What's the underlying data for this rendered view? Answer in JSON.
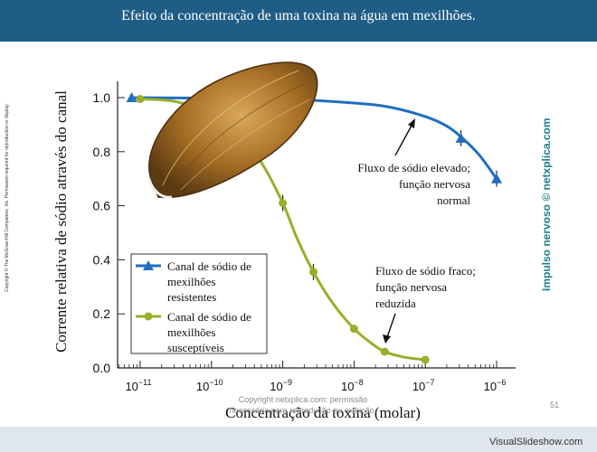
{
  "header": {
    "title": "Efeito da concentração de uma toxina na água em mexilhões."
  },
  "side": {
    "left_text": "Copyright © The McGraw-Hill Companies, Inc. Permission required for reproduction or display.",
    "right_text": "Impulso nervoso © netxplica.com"
  },
  "footer": {
    "copyright_line1": "Copyright netxplica.com: permissão",
    "copyright_line2": "necessária para reprodução ou exibição.",
    "page_number": "51",
    "watermark": "VisualSlideshow.com"
  },
  "colors": {
    "header_bg": "#1f5d86",
    "resistant": "#1f6fbf",
    "susceptible": "#9aae2a",
    "shell": "#b07a2a"
  },
  "chart_data": {
    "type": "line",
    "xlabel": "Concentração da toxina (molar)",
    "ylabel": "Corrente relativa de sódio através do canal",
    "x_scale": "log",
    "xlim_exp": [
      -11.3,
      -5.85
    ],
    "ylim": [
      0,
      1.05
    ],
    "x_ticks": [
      {
        "exp": -11,
        "label": "10",
        "sup": "−11"
      },
      {
        "exp": -10,
        "label": "10",
        "sup": "−10"
      },
      {
        "exp": -9,
        "label": "10",
        "sup": "−9"
      },
      {
        "exp": -8,
        "label": "10",
        "sup": "−8"
      },
      {
        "exp": -7,
        "label": "10",
        "sup": "−7"
      },
      {
        "exp": -6,
        "label": "10",
        "sup": "−6"
      }
    ],
    "y_ticks": [
      {
        "value": 0.0,
        "label": "0.0"
      },
      {
        "value": 0.2,
        "label": "0.2"
      },
      {
        "value": 0.4,
        "label": "0.4"
      },
      {
        "value": 0.6,
        "label": "0.6"
      },
      {
        "value": 0.8,
        "label": "0.8"
      },
      {
        "value": 1.0,
        "label": "1.0"
      }
    ],
    "series": [
      {
        "name": "Canal de sódio de mexilhões resistentes",
        "legend_lines": [
          "Canal de sódio de",
          "mexilhões",
          "resistentes"
        ],
        "marker": "triangle",
        "color": "#1f6fbf",
        "points": [
          {
            "x_exp": -11.12,
            "y": 1.0,
            "err": 0
          },
          {
            "x_exp": -6.5,
            "y": 0.85,
            "err": 0.03
          },
          {
            "x_exp": -6.0,
            "y": 0.7,
            "err": 0.03
          }
        ],
        "curve": [
          {
            "x_exp": -11.12,
            "y": 1.0
          },
          {
            "x_exp": -10.0,
            "y": 0.998
          },
          {
            "x_exp": -9.0,
            "y": 0.995
          },
          {
            "x_exp": -8.0,
            "y": 0.98
          },
          {
            "x_exp": -7.5,
            "y": 0.965
          },
          {
            "x_exp": -7.0,
            "y": 0.93
          },
          {
            "x_exp": -6.7,
            "y": 0.895
          },
          {
            "x_exp": -6.5,
            "y": 0.855
          },
          {
            "x_exp": -6.25,
            "y": 0.79
          },
          {
            "x_exp": -6.0,
            "y": 0.7
          }
        ]
      },
      {
        "name": "Canal de sódio de mexilhões susceptíveis",
        "legend_lines": [
          "Canal de sódio de",
          "mexilhões",
          "susceptíveis"
        ],
        "marker": "circle",
        "color": "#9aae2a",
        "points": [
          {
            "x_exp": -11.0,
            "y": 0.995,
            "err": 0
          },
          {
            "x_exp": -9.0,
            "y": 0.61,
            "err": 0.03
          },
          {
            "x_exp": -8.57,
            "y": 0.355,
            "err": 0.03
          },
          {
            "x_exp": -8.0,
            "y": 0.145,
            "err": 0
          },
          {
            "x_exp": -7.57,
            "y": 0.06,
            "err": 0
          },
          {
            "x_exp": -7.0,
            "y": 0.03,
            "err": 0
          }
        ],
        "curve": [
          {
            "x_exp": -11.0,
            "y": 0.995
          },
          {
            "x_exp": -10.5,
            "y": 0.985
          },
          {
            "x_exp": -10.0,
            "y": 0.94
          },
          {
            "x_exp": -9.6,
            "y": 0.86
          },
          {
            "x_exp": -9.3,
            "y": 0.76
          },
          {
            "x_exp": -9.0,
            "y": 0.61
          },
          {
            "x_exp": -8.8,
            "y": 0.48
          },
          {
            "x_exp": -8.57,
            "y": 0.355
          },
          {
            "x_exp": -8.3,
            "y": 0.24
          },
          {
            "x_exp": -8.0,
            "y": 0.145
          },
          {
            "x_exp": -7.75,
            "y": 0.09
          },
          {
            "x_exp": -7.57,
            "y": 0.06
          },
          {
            "x_exp": -7.3,
            "y": 0.04
          },
          {
            "x_exp": -7.0,
            "y": 0.03
          }
        ]
      }
    ],
    "annotations": [
      {
        "lines": [
          "Fluxo de sódio elevado;",
          "função nervosa",
          "normal"
        ]
      },
      {
        "lines": [
          "Fluxo de sódio fraco;",
          "função nervosa",
          "reduzida"
        ]
      }
    ],
    "legend_position": "bottom-left"
  }
}
